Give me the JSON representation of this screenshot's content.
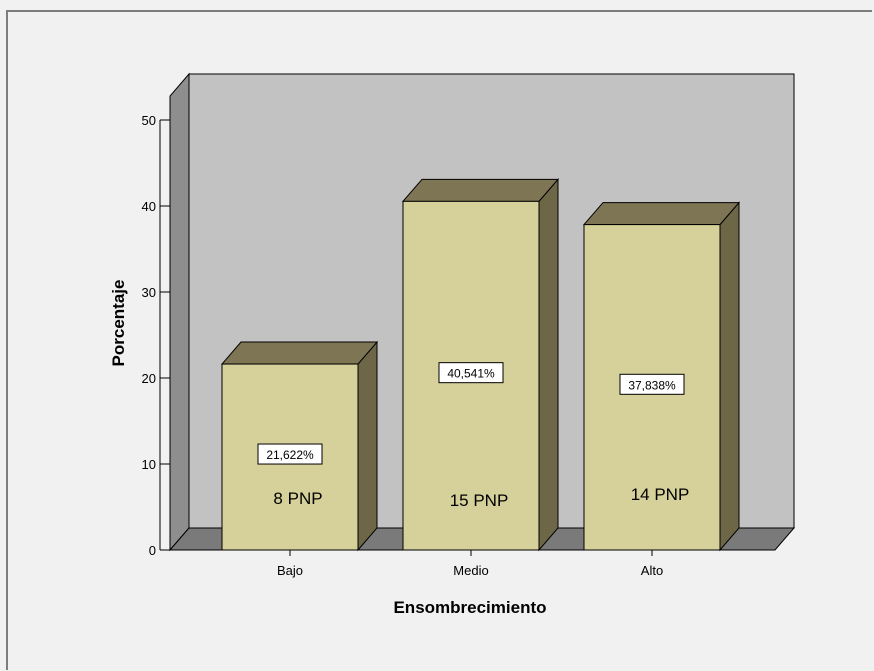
{
  "chart_data": {
    "type": "bar",
    "style": "3d",
    "categories": [
      "Bajo",
      "Medio",
      "Alto"
    ],
    "values": [
      21.622,
      40.541,
      37.838
    ],
    "value_labels": [
      "21,622%",
      "40,541%",
      "37,838%"
    ],
    "count_labels": [
      "8 PNP",
      "15 PNP",
      "14 PNP"
    ],
    "xlabel": "Ensombrecimiento",
    "ylabel": "Porcentaje",
    "ylim": [
      0,
      50
    ],
    "yticks": [
      "0",
      "10",
      "20",
      "30",
      "40",
      "50"
    ],
    "colors": {
      "bar_front": "#d6d09a",
      "bar_top": "#7d7553",
      "bar_side": "#6d6647",
      "wall": "#c2c2c2",
      "floor": "#7a7a7a",
      "left_wall": "#8e8e8e"
    }
  }
}
